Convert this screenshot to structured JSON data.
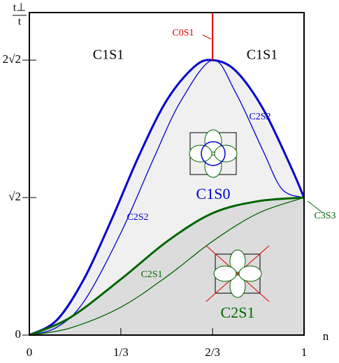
{
  "chart_data": {
    "type": "line",
    "ylabel_num": "t⊥",
    "ylabel_den": "t",
    "xlabel": "n",
    "xlim": [
      0,
      1
    ],
    "ylim": [
      0,
      3.317
    ],
    "xticks": [
      0,
      {
        "value": 0.333,
        "label": "1/3"
      },
      {
        "value": 0.667,
        "label": "2/3"
      },
      1
    ],
    "yticks": [
      0,
      {
        "value": 1.414,
        "label": "√2"
      },
      {
        "value": 2.828,
        "label": "2√2"
      }
    ],
    "series": [
      {
        "color": "#0000cc",
        "line_width": 3,
        "fill": "#f0f0f0",
        "x": [
          0,
          0.1,
          0.2,
          0.3,
          0.4,
          0.5,
          0.6,
          0.667,
          0.75,
          0.85,
          0.95,
          1
        ],
        "values": [
          0,
          0.154,
          0.583,
          1.193,
          1.851,
          2.414,
          2.759,
          2.828,
          2.721,
          2.331,
          1.744,
          1.414
        ]
      },
      {
        "color": "#0000cc",
        "line_width": 1.3,
        "x": [
          0,
          0.1,
          0.2,
          0.333,
          0.45,
          0.55,
          0.667,
          0.75,
          0.85,
          0.92,
          1
        ],
        "values": [
          0,
          0.08,
          0.35,
          1.05,
          1.8,
          2.4,
          2.828,
          2.5,
          1.9,
          1.5,
          1.414
        ]
      },
      {
        "color": "#006600",
        "line_width": 3,
        "fill": "#dcdcdc",
        "x": [
          0,
          0.148,
          0.333,
          0.504,
          0.669,
          0.835,
          1
        ],
        "values": [
          0,
          0.179,
          0.574,
          0.969,
          1.256,
          1.378,
          1.414
        ]
      },
      {
        "color": "#006600",
        "line_width": 1.3,
        "x": [
          0,
          0.148,
          0.333,
          0.504,
          0.669,
          0.835,
          1
        ],
        "values": [
          0,
          0.072,
          0.287,
          0.61,
          0.969,
          1.256,
          1.414
        ]
      },
      {
        "color": "#dd0000",
        "line_width": 2,
        "x": [
          0.667,
          0.667
        ],
        "values": [
          2.828,
          3.317
        ]
      }
    ],
    "annotations": [
      {
        "text": "C1S1",
        "color": "#000000"
      },
      {
        "text": "C1S1",
        "color": "#000000"
      },
      {
        "text": "C0S1",
        "color": "#dd0000"
      },
      {
        "text": "C2S2",
        "color": "#0000cc"
      },
      {
        "text": "C2S2",
        "color": "#0000cc"
      },
      {
        "text": "C1S0",
        "color": "#0000cc"
      },
      {
        "text": "C2S1",
        "color": "#006600"
      },
      {
        "text": "C2S1",
        "color": "#006600"
      },
      {
        "text": "C3S3",
        "color": "#006600"
      }
    ]
  }
}
